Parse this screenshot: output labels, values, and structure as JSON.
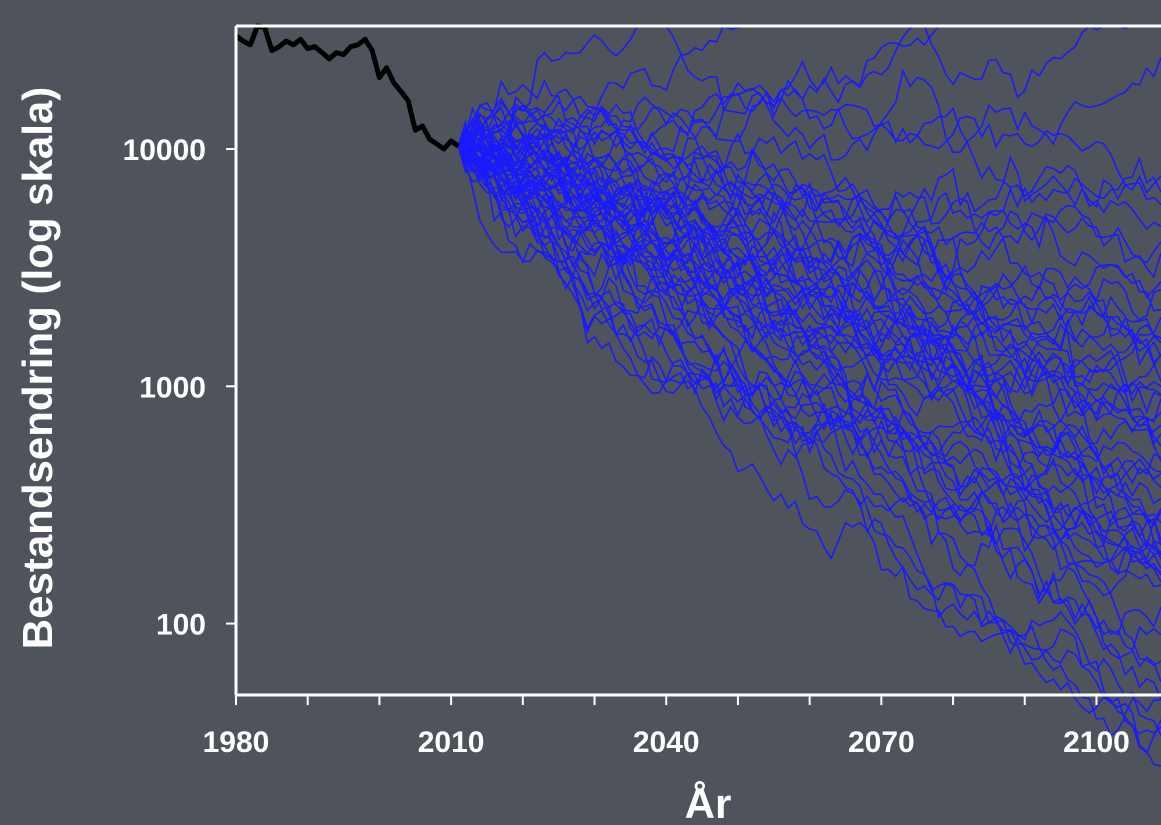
{
  "chart_data": {
    "type": "line",
    "title": "",
    "xlabel": "År",
    "ylabel": "Bestandsendring (log skala)",
    "xlim": [
      1980,
      2109
    ],
    "ylim": [
      50,
      33000
    ],
    "yscale": "log",
    "grid": false,
    "legend": "none",
    "x_ticks": [
      1980,
      2010,
      2040,
      2070,
      2100
    ],
    "x_tick_labels": [
      "1980",
      "2010",
      "2040",
      "2070",
      "2100"
    ],
    "y_ticks": [
      100,
      1000,
      10000
    ],
    "y_tick_labels": [
      "100",
      "1000",
      "10000"
    ],
    "colors": {
      "background": "#4e535c",
      "axis": "#ffffff",
      "observed": "#000000",
      "simulated": "#1a1aff"
    },
    "observed": {
      "x": [
        1980,
        1981,
        1982,
        1983,
        1984,
        1985,
        1986,
        1987,
        1988,
        1989,
        1990,
        1991,
        1992,
        1993,
        1994,
        1995,
        1996,
        1997,
        1998,
        1999,
        2000,
        2001,
        2002,
        2003,
        2004,
        2005,
        2006,
        2007,
        2008,
        2009,
        2010,
        2011
      ],
      "y": [
        30000,
        28500,
        27500,
        33000,
        32500,
        26000,
        27000,
        28500,
        27500,
        29000,
        26500,
        27000,
        25500,
        24000,
        25500,
        25000,
        27000,
        27500,
        29000,
        26000,
        20000,
        22000,
        19000,
        17500,
        16000,
        12000,
        12500,
        11000,
        10500,
        10000,
        10800,
        10300
      ]
    },
    "simulated": {
      "n_trajectories": 60,
      "start_year": 2011,
      "end_year": 2109,
      "start_value": 10300,
      "end_range": [
        50,
        6500
      ]
    }
  }
}
